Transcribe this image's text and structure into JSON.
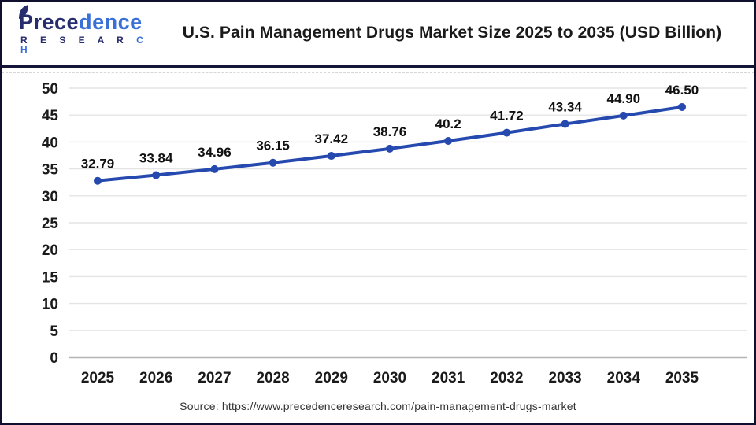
{
  "header": {
    "logo": {
      "part1": "Prece",
      "part2": "dence",
      "research_part1": "R E S E A R",
      "research_part2": " C H"
    },
    "title": "U.S. Pain Management Drugs Market Size 2025 to 2035 (USD Billion)"
  },
  "chart_data": {
    "type": "line",
    "title": "U.S. Pain Management Drugs Market Size 2025 to 2035 (USD Billion)",
    "categories": [
      "2025",
      "2026",
      "2027",
      "2028",
      "2029",
      "2030",
      "2031",
      "2032",
      "2033",
      "2034",
      "2035"
    ],
    "values": [
      32.79,
      33.84,
      34.96,
      36.15,
      37.42,
      38.76,
      40.2,
      41.72,
      43.34,
      44.9,
      46.5
    ],
    "value_labels": [
      "32.79",
      "33.84",
      "34.96",
      "36.15",
      "37.42",
      "38.76",
      "40.2",
      "41.72",
      "43.34",
      "44.90",
      "46.50"
    ],
    "xlabel": "",
    "ylabel": "",
    "ylim": [
      0,
      50
    ],
    "ytick_step": 5,
    "grid": true,
    "legend": "none",
    "line_color": "#2549ae",
    "grid_color": "#e4e4e4",
    "zero_axis_color": "#b5b5b5",
    "label_color": "#111111"
  },
  "footer": {
    "source": "Source: https://www.precedenceresearch.com/pain-management-drugs-market"
  }
}
